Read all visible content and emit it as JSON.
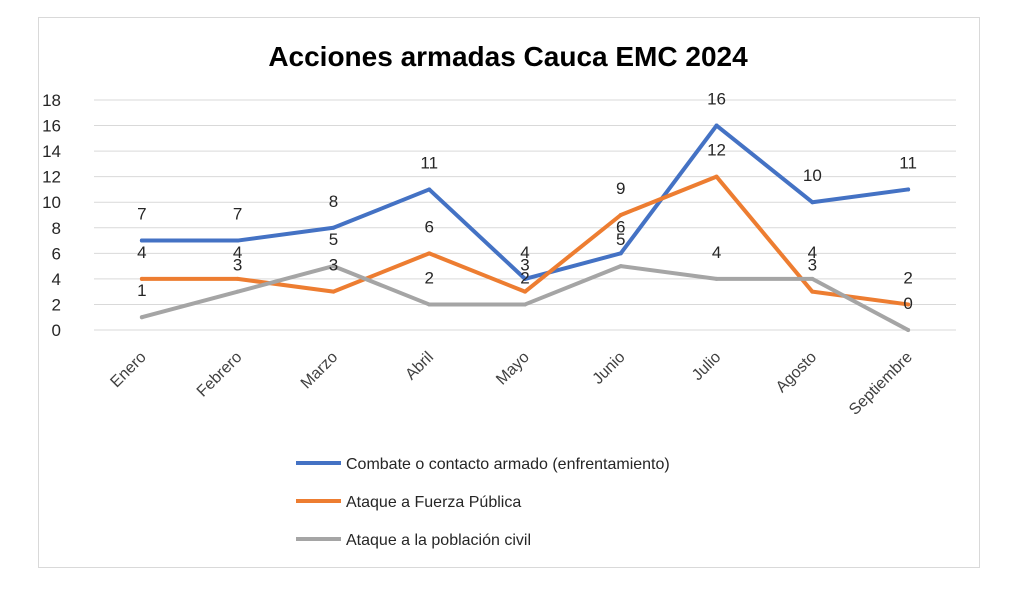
{
  "chart_data": {
    "type": "line",
    "title": "Acciones armadas Cauca EMC 2024",
    "categories": [
      "Enero",
      "Febrero",
      "Marzo",
      "Abril",
      "Mayo",
      "Junio",
      "Julio",
      "Agosto",
      "Septiembre"
    ],
    "ylim": [
      0,
      18
    ],
    "yticks": [
      "0",
      "2",
      "4",
      "6",
      "8",
      "10",
      "12",
      "14",
      "16",
      "18"
    ],
    "grid": true,
    "legend_position": "bottom",
    "data_labels": true,
    "series": [
      {
        "name": "Combate o contacto armado (enfrentamiento)",
        "color": "#4472C4",
        "values": [
          7,
          7,
          8,
          11,
          4,
          6,
          16,
          10,
          11
        ]
      },
      {
        "name": "Ataque a Fuerza Pública",
        "color": "#ED7D31",
        "values": [
          4,
          4,
          3,
          6,
          3,
          9,
          12,
          3,
          2
        ]
      },
      {
        "name": "Ataque a la población civil",
        "color": "#A5A5A5",
        "values": [
          1,
          3,
          5,
          2,
          2,
          5,
          4,
          4,
          0
        ]
      }
    ]
  }
}
